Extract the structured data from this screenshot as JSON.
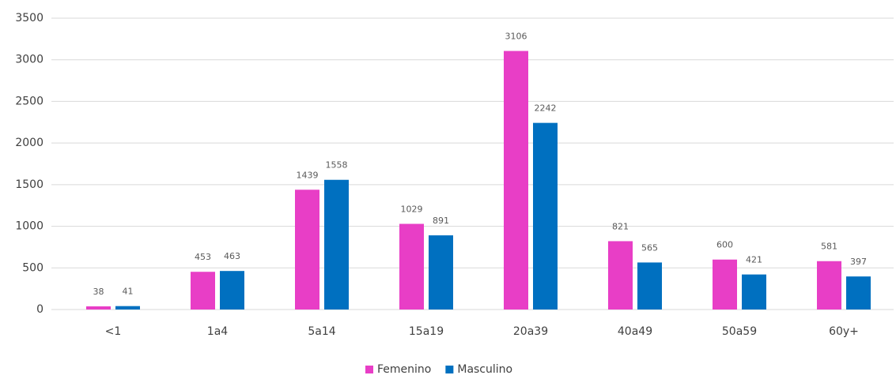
{
  "chart_data": {
    "type": "bar",
    "categories": [
      "<1",
      "1a4",
      "5a14",
      "15a19",
      "20a39",
      "40a49",
      "50a59",
      "60y+"
    ],
    "series": [
      {
        "name": "Femenino",
        "color": "#e83ec6",
        "values": [
          38,
          453,
          1439,
          1029,
          3106,
          821,
          600,
          581
        ]
      },
      {
        "name": "Masculino",
        "color": "#0070c0",
        "values": [
          41,
          463,
          1558,
          891,
          2242,
          565,
          421,
          397
        ]
      }
    ],
    "ylim": [
      0,
      3500
    ],
    "yticks": [
      0,
      500,
      1000,
      1500,
      2000,
      2500,
      3000,
      3500
    ],
    "grid": true,
    "legend": "bottom",
    "data_labels": true
  }
}
